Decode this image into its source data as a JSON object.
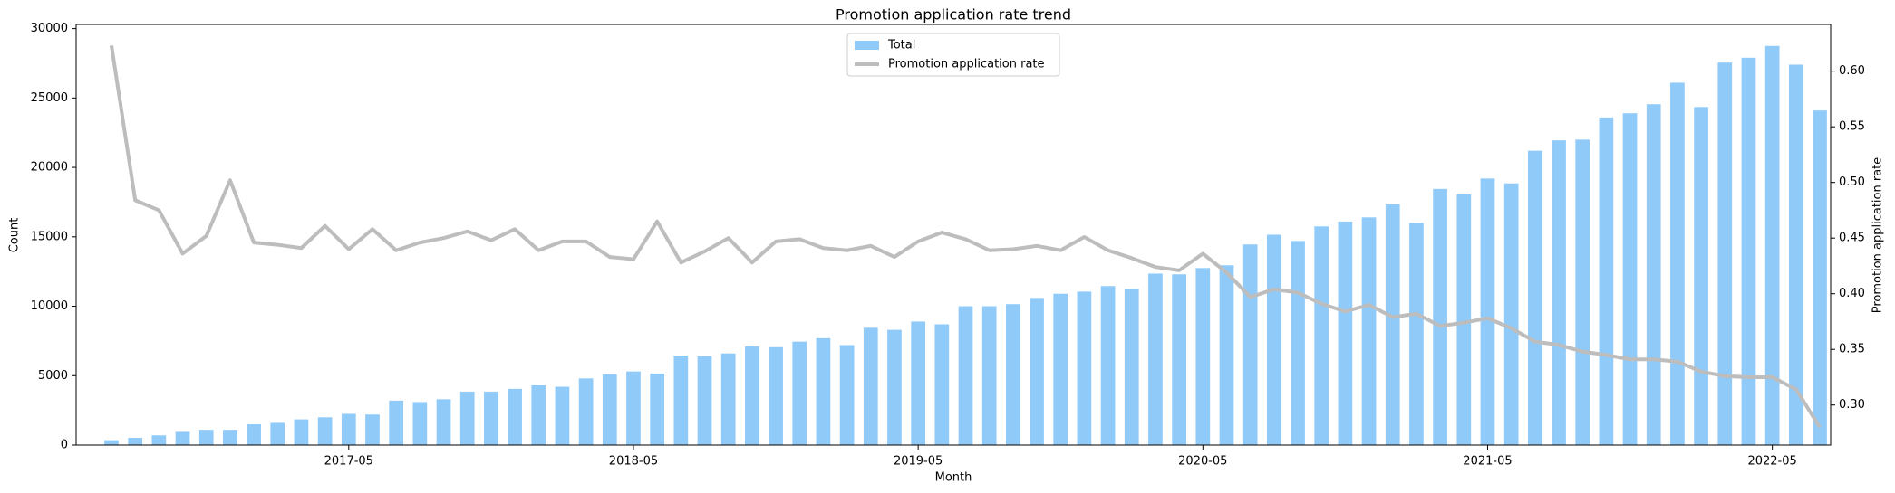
{
  "chart_data": {
    "type": "bar",
    "title": "Promotion application rate trend",
    "xlabel": "Month",
    "ylabel": "Count",
    "y2label": "Promotion application rate",
    "categories": [
      null,
      null,
      null,
      null,
      null,
      null,
      null,
      null,
      null,
      null,
      "2017-05",
      null,
      null,
      null,
      null,
      null,
      null,
      null,
      null,
      null,
      null,
      null,
      "2018-05",
      null,
      null,
      null,
      null,
      null,
      null,
      null,
      null,
      null,
      null,
      null,
      "2019-05",
      null,
      null,
      null,
      null,
      null,
      null,
      null,
      null,
      null,
      null,
      null,
      "2020-05",
      null,
      null,
      null,
      null,
      null,
      null,
      null,
      null,
      null,
      null,
      null,
      "2021-05",
      null,
      null,
      null,
      null,
      null,
      null,
      null,
      null,
      null,
      null,
      null,
      "2022-05",
      null,
      null
    ],
    "series": [
      {
        "name": "Total",
        "type": "bar",
        "color": "#90caf9",
        "values": [
          350,
          520,
          700,
          950,
          1100,
          1100,
          1500,
          1600,
          1850,
          2000,
          2250,
          2200,
          3200,
          3100,
          3300,
          3850,
          3850,
          4050,
          4300,
          4200,
          4800,
          5100,
          5300,
          5150,
          6450,
          6400,
          6600,
          7100,
          7050,
          7450,
          7700,
          7200,
          8450,
          8300,
          8900,
          8700,
          10000,
          10000,
          10150,
          10600,
          10900,
          11050,
          11450,
          11250,
          12350,
          12300,
          12750,
          12950,
          14450,
          15150,
          14700,
          15750,
          16100,
          16400,
          17350,
          16000,
          18450,
          18050,
          19200,
          18850,
          21200,
          21950,
          22000,
          23600,
          23900,
          24550,
          26100,
          24350,
          27550,
          27900,
          28750,
          27400,
          24100
        ]
      },
      {
        "name": "Promotion application rate",
        "type": "line",
        "axis": "y2",
        "color": "#bdbdbd",
        "values": [
          0.623,
          0.484,
          0.475,
          0.436,
          0.452,
          0.502,
          0.446,
          0.444,
          0.441,
          0.461,
          0.44,
          0.458,
          0.439,
          0.446,
          0.45,
          0.456,
          0.448,
          0.458,
          0.439,
          0.447,
          0.447,
          0.433,
          0.431,
          0.465,
          0.428,
          0.438,
          0.45,
          0.428,
          0.447,
          0.449,
          0.441,
          0.439,
          0.443,
          0.433,
          0.447,
          0.455,
          0.449,
          0.439,
          0.44,
          0.443,
          0.439,
          0.451,
          0.439,
          0.432,
          0.424,
          0.421,
          0.436,
          0.419,
          0.397,
          0.404,
          0.401,
          0.391,
          0.384,
          0.39,
          0.379,
          0.382,
          0.371,
          0.374,
          0.378,
          0.369,
          0.357,
          0.354,
          0.348,
          0.345,
          0.341,
          0.341,
          0.339,
          0.33,
          0.326,
          0.325,
          0.325,
          0.314,
          0.28
        ]
      }
    ],
    "ylim": [
      0,
      30300
    ],
    "yticks": [
      0,
      5000,
      10000,
      15000,
      20000,
      25000,
      30000
    ],
    "y2lim": [
      0.264,
      0.642
    ],
    "y2ticks": [
      {
        "value": 0.3,
        "label": "0.30"
      },
      0.35,
      {
        "value": 0.4,
        "label": "0.40"
      },
      0.45,
      {
        "value": 0.5,
        "label": "0.50"
      },
      0.55,
      {
        "value": 0.6,
        "label": "0.60"
      }
    ],
    "legend": "upper center",
    "grid": false
  }
}
